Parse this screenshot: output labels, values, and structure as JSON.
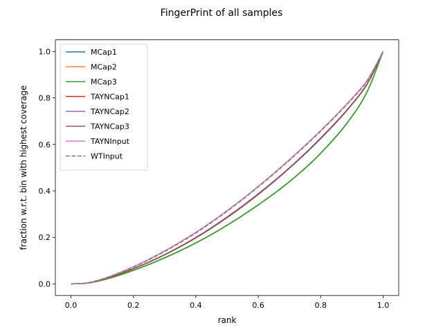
{
  "chart_data": {
    "type": "line",
    "title": "FingerPrint of all samples",
    "xlabel": "rank",
    "ylabel": "fraction w.r.t. bin with highest coverage",
    "xlim": [
      -0.05,
      1.05
    ],
    "ylim": [
      -0.05,
      1.05
    ],
    "xticks": [
      "0.0",
      "0.2",
      "0.4",
      "0.6",
      "0.8",
      "1.0"
    ],
    "yticks": [
      "0.0",
      "0.2",
      "0.4",
      "0.6",
      "0.8",
      "1.0"
    ],
    "grid": false,
    "legend_position": "upper-left",
    "x": [
      0.0,
      0.05,
      0.1,
      0.2,
      0.3,
      0.4,
      0.5,
      0.6,
      0.7,
      0.8,
      0.9,
      0.95,
      1.0
    ],
    "series": [
      {
        "name": "MCap1",
        "color": "#1f77b4",
        "style": "solid",
        "values": [
          0.0,
          0.003,
          0.016,
          0.058,
          0.112,
          0.176,
          0.252,
          0.34,
          0.44,
          0.562,
          0.72,
          0.83,
          1.0
        ]
      },
      {
        "name": "MCap2",
        "color": "#ff7f0e",
        "style": "solid",
        "values": [
          0.0,
          0.003,
          0.016,
          0.058,
          0.112,
          0.176,
          0.252,
          0.34,
          0.44,
          0.562,
          0.72,
          0.83,
          1.0
        ]
      },
      {
        "name": "MCap3",
        "color": "#2ca02c",
        "style": "solid",
        "values": [
          0.0,
          0.003,
          0.016,
          0.058,
          0.112,
          0.176,
          0.252,
          0.34,
          0.44,
          0.562,
          0.72,
          0.83,
          1.0
        ]
      },
      {
        "name": "TAYNCap1",
        "color": "#d62728",
        "style": "solid",
        "values": [
          0.0,
          0.003,
          0.018,
          0.065,
          0.125,
          0.198,
          0.285,
          0.385,
          0.498,
          0.625,
          0.772,
          0.862,
          1.0
        ]
      },
      {
        "name": "TAYNCap2",
        "color": "#9467bd",
        "style": "solid",
        "values": [
          0.0,
          0.003,
          0.018,
          0.066,
          0.126,
          0.2,
          0.288,
          0.388,
          0.5,
          0.628,
          0.774,
          0.864,
          1.0
        ]
      },
      {
        "name": "TAYNCap3",
        "color": "#8c564b",
        "style": "solid",
        "values": [
          0.0,
          0.003,
          0.018,
          0.065,
          0.125,
          0.198,
          0.285,
          0.385,
          0.498,
          0.625,
          0.772,
          0.862,
          1.0
        ]
      },
      {
        "name": "TAYNInput",
        "color": "#e377c2",
        "style": "solid",
        "values": [
          0.0,
          0.004,
          0.021,
          0.074,
          0.142,
          0.222,
          0.315,
          0.42,
          0.535,
          0.66,
          0.798,
          0.878,
          1.0
        ]
      },
      {
        "name": "WTInput",
        "color": "#7f7f7f",
        "style": "dashed",
        "values": [
          0.0,
          0.004,
          0.02,
          0.072,
          0.139,
          0.219,
          0.312,
          0.417,
          0.532,
          0.657,
          0.795,
          0.875,
          1.0
        ]
      }
    ]
  }
}
